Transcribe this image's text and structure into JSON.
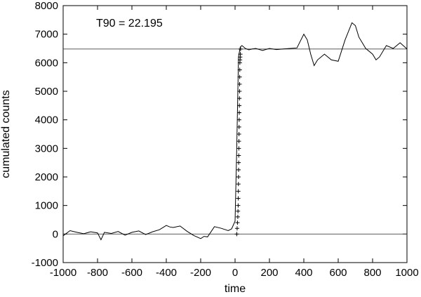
{
  "chart_data": {
    "type": "line",
    "xlabel": "time",
    "ylabel": "cumulated counts",
    "xlim": [
      -1000,
      1000
    ],
    "ylim": [
      -1000,
      8000
    ],
    "x_ticks": [
      -1000,
      -800,
      -600,
      -400,
      -200,
      0,
      200,
      400,
      600,
      800,
      1000
    ],
    "y_ticks": [
      -1000,
      0,
      1000,
      2000,
      3000,
      4000,
      5000,
      6000,
      7000,
      8000
    ],
    "grid": false,
    "annotation": "T90 = 22.195",
    "reference_lines": [
      0,
      6480
    ],
    "series": [
      {
        "x": [
          -1000,
          -960,
          -920,
          -880,
          -840,
          -800,
          -780,
          -760,
          -720,
          -680,
          -640,
          -600,
          -560,
          -520,
          -480,
          -440,
          -400,
          -380,
          -360,
          -320,
          -280,
          -240,
          -200,
          -180,
          -160,
          -120,
          -80,
          -40,
          -20,
          0,
          10,
          20,
          30,
          40,
          60,
          80,
          100,
          120,
          160,
          200,
          240,
          280,
          320,
          360,
          400,
          420,
          440,
          460,
          480,
          520,
          560,
          600,
          640,
          680,
          700,
          720,
          760,
          800,
          820,
          840,
          880,
          920,
          960,
          1000
        ],
        "y": [
          -60,
          120,
          60,
          10,
          80,
          40,
          -200,
          60,
          20,
          90,
          -40,
          60,
          110,
          -20,
          80,
          150,
          300,
          250,
          230,
          280,
          100,
          -50,
          -160,
          -80,
          -100,
          260,
          200,
          120,
          180,
          450,
          3000,
          6200,
          6550,
          6600,
          6500,
          6450,
          6480,
          6500,
          6430,
          6500,
          6460,
          6480,
          6500,
          6520,
          7000,
          6800,
          6300,
          5900,
          6100,
          6300,
          6100,
          6050,
          6800,
          7400,
          7300,
          6900,
          6500,
          6300,
          6100,
          6200,
          6600,
          6500,
          6700,
          6480
        ]
      },
      {
        "marker": "plus",
        "x": [
          10,
          12,
          14,
          16,
          17,
          18,
          18.5,
          19,
          19.5,
          20,
          20.5,
          21,
          21.5,
          22,
          22.5,
          23,
          23.5,
          24,
          24.5,
          25,
          25.5,
          26,
          26.5,
          27,
          27.5,
          28,
          29,
          30,
          31,
          32
        ],
        "y": [
          0,
          200,
          400,
          600,
          800,
          1000,
          1250,
          1500,
          1750,
          2000,
          2250,
          2500,
          2750,
          3000,
          3250,
          3500,
          3750,
          4000,
          4250,
          4500,
          4750,
          5000,
          5250,
          5500,
          5750,
          6000,
          6100,
          6200,
          6300,
          6480
        ]
      }
    ]
  }
}
